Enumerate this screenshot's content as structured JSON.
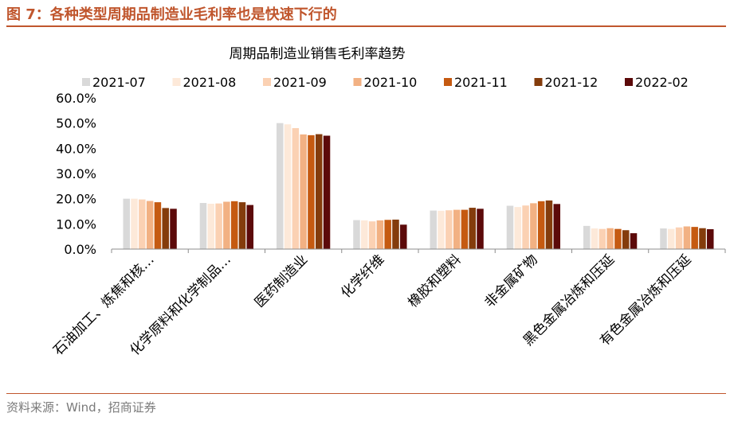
{
  "figure": {
    "title": "图 7：各种类型周期品制造业毛利率也是快速下行的",
    "source": "资料来源：Wind，招商证券"
  },
  "colors": {
    "accent": "#c0562d",
    "series": [
      "#d9d9d9",
      "#fde9d9",
      "#fbd1b3",
      "#f2b183",
      "#c55a11",
      "#843c0c",
      "#5c0a0a"
    ]
  },
  "chart_data": {
    "type": "bar",
    "title": "周期品制造业销售毛利率趋势",
    "xlabel": "",
    "ylabel": "",
    "ylim": [
      0,
      60
    ],
    "yticks": [
      "0.0%",
      "10.0%",
      "20.0%",
      "30.0%",
      "40.0%",
      "50.0%",
      "60.0%"
    ],
    "legend_position": "top",
    "categories": [
      "石油加工、炼焦和核…",
      "化学原料和化学制品…",
      "医药制造业",
      "化学纤维",
      "橡胶和塑料",
      "非金属矿物",
      "黑色金属冶炼和压延",
      "有色金属冶炼和压延"
    ],
    "series": [
      {
        "name": "2021-07",
        "values": [
          20.0,
          18.3,
          50.0,
          11.5,
          15.3,
          17.2,
          9.2,
          8.2
        ]
      },
      {
        "name": "2021-08",
        "values": [
          20.0,
          18.0,
          49.5,
          11.4,
          15.2,
          16.7,
          8.2,
          8.0
        ]
      },
      {
        "name": "2021-09",
        "values": [
          19.7,
          18.1,
          48.0,
          11.0,
          15.4,
          17.3,
          8.0,
          8.6
        ]
      },
      {
        "name": "2021-10",
        "values": [
          19.1,
          18.8,
          45.5,
          11.4,
          15.6,
          18.2,
          8.3,
          9.0
        ]
      },
      {
        "name": "2021-11",
        "values": [
          18.6,
          19.0,
          45.2,
          11.6,
          15.6,
          19.0,
          8.0,
          8.8
        ]
      },
      {
        "name": "2021-12",
        "values": [
          16.3,
          18.6,
          45.6,
          11.7,
          16.4,
          19.3,
          7.5,
          8.3
        ]
      },
      {
        "name": "2022-02",
        "values": [
          16.0,
          17.5,
          45.0,
          9.7,
          16.0,
          17.9,
          6.3,
          7.9
        ]
      }
    ]
  }
}
